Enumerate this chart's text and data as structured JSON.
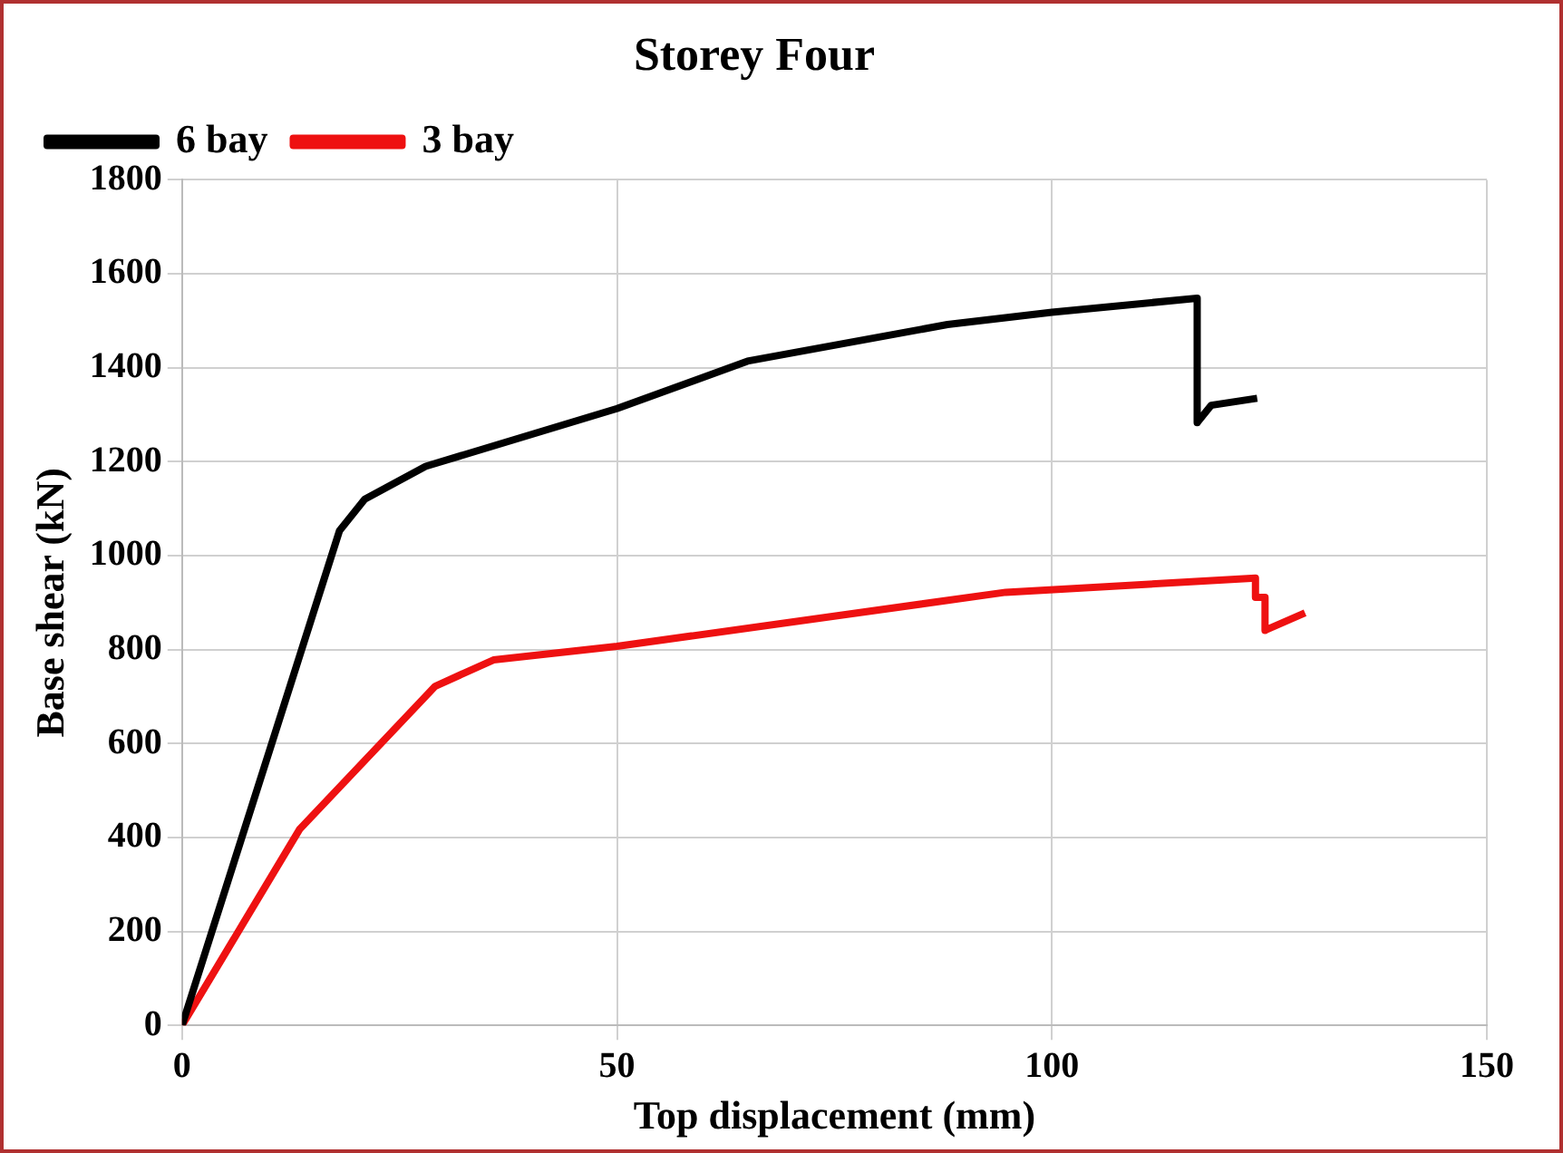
{
  "chart_data": {
    "type": "line",
    "title": "Storey Four",
    "xlabel": "Top displacement (mm)",
    "ylabel": "Base shear (kN)",
    "xlim": [
      0,
      150
    ],
    "xticks": [
      0,
      50,
      100,
      150
    ],
    "ylim": [
      0,
      1800
    ],
    "yticks": [
      0,
      200,
      400,
      600,
      800,
      1000,
      1200,
      1400,
      1600,
      1800
    ],
    "grid": true,
    "legend": "top left",
    "marker": "none",
    "line_style": "solid",
    "series": [
      {
        "name": "6 bay",
        "color": "#000000",
        "x": [
          0,
          18.1,
          21,
          28,
          50,
          65,
          88,
          100,
          116.7,
          116.7,
          118.3,
          123.6
        ],
        "values": [
          0,
          1053,
          1120,
          1190,
          1313,
          1414,
          1492,
          1518,
          1548,
          1283,
          1320,
          1335
        ]
      },
      {
        "name": "3 bay",
        "color": "#ee1111",
        "x": [
          0,
          13.5,
          29.1,
          35.8,
          50,
          94.7,
          123.4,
          123.4,
          124.5,
          124.5,
          129.1
        ],
        "values": [
          0,
          417,
          722,
          778,
          807,
          922,
          952,
          911,
          911,
          841,
          878
        ]
      }
    ]
  }
}
